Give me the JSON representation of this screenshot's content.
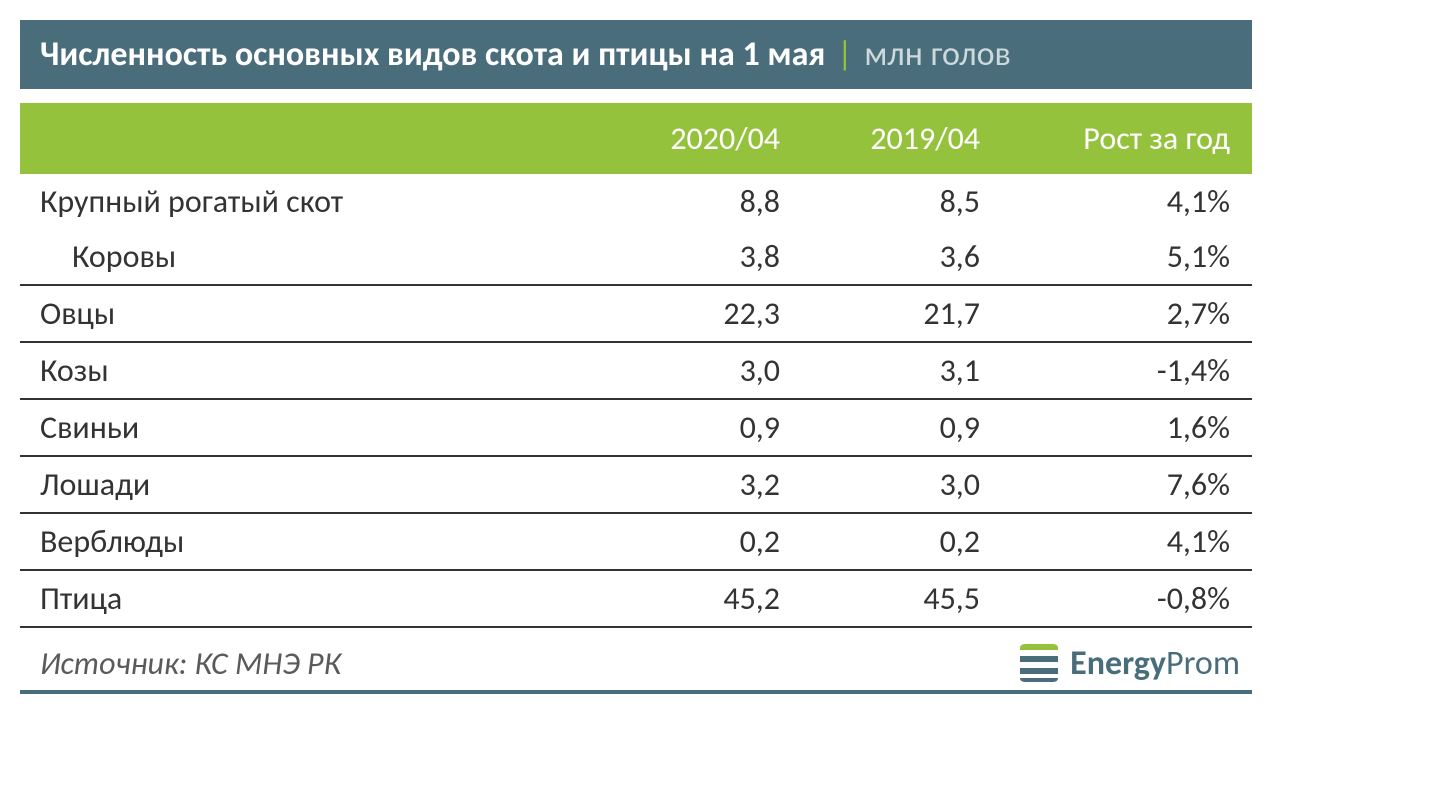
{
  "title": {
    "main": "Численность основных видов скота и птицы на 1 мая",
    "separator": "|",
    "sub": "млн голов",
    "bg_color": "#4a6d7c",
    "fg_color": "#ffffff",
    "sub_fg_color": "#cdd9dd",
    "sep_fg_color": "#95c23d"
  },
  "header": {
    "col_a": "2020/04",
    "col_b": "2019/04",
    "col_c": "Рост за год",
    "bg_color": "#95c23d",
    "fg_color": "#ffffff"
  },
  "table": {
    "row_fg": "#333333",
    "row_border_color": "#333333",
    "col_widths": {
      "a": 200,
      "b": 200,
      "c": 250
    },
    "rows": [
      {
        "label": "Крупный рогатый скот",
        "a": "8,8",
        "b": "8,5",
        "c": "4,1%",
        "indent": false,
        "border": false
      },
      {
        "label": "Коровы",
        "a": "3,8",
        "b": "3,6",
        "c": "5,1%",
        "indent": true,
        "border": true
      },
      {
        "label": "Овцы",
        "a": "22,3",
        "b": "21,7",
        "c": "2,7%",
        "indent": false,
        "border": true
      },
      {
        "label": "Козы",
        "a": "3,0",
        "b": "3,1",
        "c": "-1,4%",
        "indent": false,
        "border": true
      },
      {
        "label": "Свиньи",
        "a": "0,9",
        "b": "0,9",
        "c": "1,6%",
        "indent": false,
        "border": true
      },
      {
        "label": "Лошади",
        "a": "3,2",
        "b": "3,0",
        "c": "7,6%",
        "indent": false,
        "border": true
      },
      {
        "label": "Верблюды",
        "a": "0,2",
        "b": "0,2",
        "c": "4,1%",
        "indent": false,
        "border": true
      },
      {
        "label": "Птица",
        "a": "45,2",
        "b": "45,5",
        "c": "-0,8%",
        "indent": false,
        "border": true
      }
    ]
  },
  "footer": {
    "source": "Источник: КС МНЭ РК",
    "source_fg": "#5a5a5a",
    "border_color": "#4a6d7c",
    "logo": {
      "text_bold": "Energy",
      "text_light": "Prom",
      "text_fg": "#4a6d7c",
      "mark_color_primary": "#4a6d7c",
      "mark_color_accent": "#95c23d"
    }
  }
}
